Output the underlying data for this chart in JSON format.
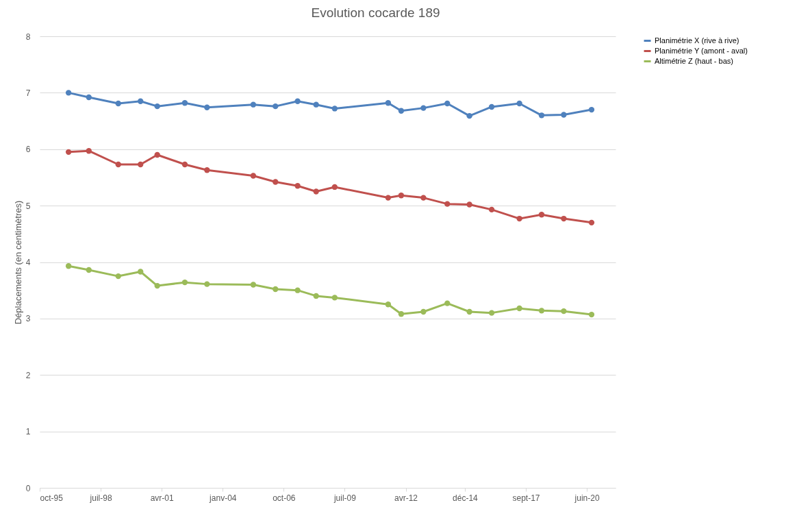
{
  "chart_data": {
    "type": "line",
    "title": "Evolution cocarde 189",
    "ylabel": "Déplacements (en centimètres)",
    "x": [
      "1997-02",
      "1998-01",
      "1999-05",
      "2000-05",
      "2001-02",
      "2002-05",
      "2003-05",
      "2005-06",
      "2006-06",
      "2007-06",
      "2008-04",
      "2009-02",
      "2011-07",
      "2012-02",
      "2013-02",
      "2014-03",
      "2015-03",
      "2016-03",
      "2017-06",
      "2018-06",
      "2019-06",
      "2020-09"
    ],
    "series": [
      {
        "name": "Planimétrie X (rive à rive)",
        "color": "#4f81bd",
        "values": [
          7.0,
          6.92,
          6.81,
          6.85,
          6.76,
          6.82,
          6.74,
          6.79,
          6.76,
          6.85,
          6.79,
          6.72,
          6.82,
          6.68,
          6.73,
          6.81,
          6.59,
          6.75,
          6.81,
          6.6,
          6.61,
          6.7
        ]
      },
      {
        "name": "Planimétrie Y (amont - aval)",
        "color": "#c0504d",
        "values": [
          5.95,
          5.97,
          5.73,
          5.73,
          5.9,
          5.73,
          5.63,
          5.53,
          5.42,
          5.35,
          5.25,
          5.33,
          5.14,
          5.18,
          5.14,
          5.03,
          5.02,
          4.93,
          4.77,
          4.84,
          4.77,
          4.7
        ]
      },
      {
        "name": "Altimétrie Z (haut - bas)",
        "color": "#9bbb59",
        "values": [
          3.93,
          3.86,
          3.75,
          3.83,
          3.58,
          3.64,
          3.61,
          3.6,
          3.52,
          3.5,
          3.4,
          3.37,
          3.25,
          3.08,
          3.12,
          3.27,
          3.12,
          3.1,
          3.18,
          3.14,
          3.13,
          3.07
        ]
      }
    ],
    "xlim": [
      "1995-10-15",
      "2021-10-01"
    ],
    "xticks": [
      {
        "value": "1995-10-15",
        "label": "oct-95"
      },
      {
        "value": "1998-07-15",
        "label": "juil-98"
      },
      {
        "value": "2001-04-15",
        "label": "avr-01"
      },
      {
        "value": "2004-01-15",
        "label": "janv-04"
      },
      {
        "value": "2006-10-15",
        "label": "oct-06"
      },
      {
        "value": "2009-07-15",
        "label": "juil-09"
      },
      {
        "value": "2012-04-15",
        "label": "avr-12"
      },
      {
        "value": "2014-12-15",
        "label": "déc-14"
      },
      {
        "value": "2017-09-15",
        "label": "sept-17"
      },
      {
        "value": "2020-06-15",
        "label": "juin-20"
      }
    ],
    "ylim": [
      0,
      8
    ],
    "yticks": [
      0,
      1,
      2,
      3,
      4,
      5,
      6,
      7,
      8
    ],
    "grid": "y",
    "legend": "right",
    "marker": "circle",
    "line_style": "solid"
  }
}
